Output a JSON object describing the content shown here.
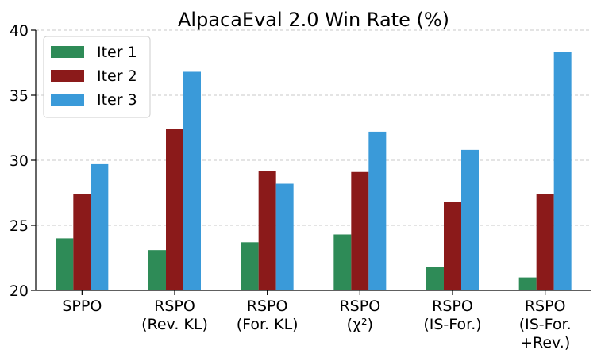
{
  "chart_data": {
    "type": "bar",
    "title": "AlpacaEval 2.0 Win Rate (%)",
    "xlabel": "",
    "ylabel": "",
    "ylim": [
      20,
      40
    ],
    "yticks": [
      20,
      25,
      30,
      35,
      40
    ],
    "grid": true,
    "legend_position": "top-left",
    "categories": [
      [
        "SPPO"
      ],
      [
        "RSPO",
        "(Rev. KL)"
      ],
      [
        "RSPO",
        "(For. KL)"
      ],
      [
        "RSPO",
        "(χ²)"
      ],
      [
        "RSPO",
        "(IS-For.)"
      ],
      [
        "RSPO",
        "(IS-For.",
        "+Rev.)"
      ]
    ],
    "series": [
      {
        "name": "Iter 1",
        "color": "#2e8b57",
        "values": [
          24.0,
          23.1,
          23.7,
          24.3,
          21.8,
          21.0
        ]
      },
      {
        "name": "Iter 2",
        "color": "#8b1a1a",
        "values": [
          27.4,
          32.4,
          29.2,
          29.1,
          26.8,
          27.4
        ]
      },
      {
        "name": "Iter 3",
        "color": "#3a9ad9",
        "values": [
          29.7,
          36.8,
          28.2,
          32.2,
          30.8,
          38.3
        ]
      }
    ]
  }
}
